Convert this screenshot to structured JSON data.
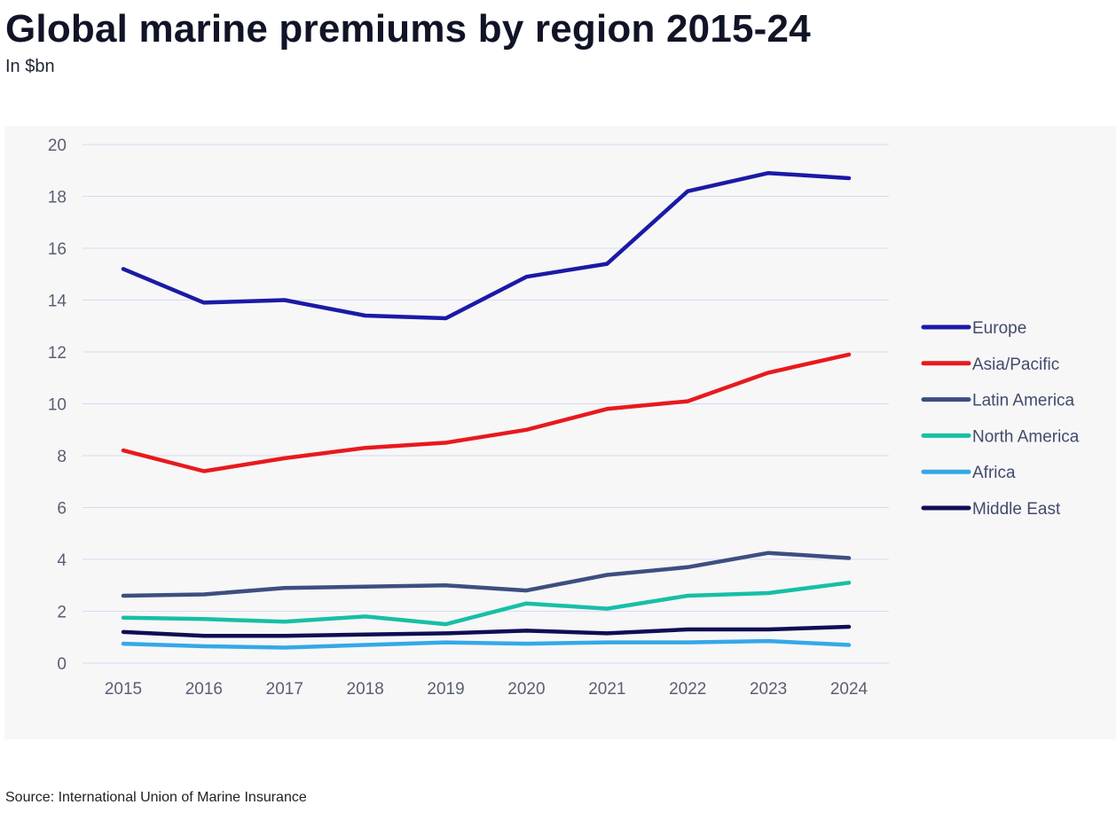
{
  "header": {
    "title": "Global marine premiums by region 2015-24",
    "subtitle": "In $bn"
  },
  "footer": {
    "source": "Source: International Union of Marine Insurance"
  },
  "chart_data": {
    "type": "line",
    "title": "Global marine premiums by region 2015-24",
    "subtitle": "In $bn",
    "xlabel": "",
    "ylabel": "",
    "ylim": [
      0,
      20
    ],
    "yticks": [
      0,
      2,
      4,
      6,
      8,
      10,
      12,
      14,
      16,
      18,
      20
    ],
    "grid": true,
    "legend_position": "right",
    "categories": [
      "2015",
      "2016",
      "2017",
      "2018",
      "2019",
      "2020",
      "2021",
      "2022",
      "2023",
      "2024"
    ],
    "series": [
      {
        "name": "Europe",
        "color": "#1a1aa6",
        "values": [
          15.2,
          13.9,
          14.0,
          13.4,
          13.3,
          14.9,
          15.4,
          18.2,
          18.9,
          18.7
        ]
      },
      {
        "name": "Asia/Pacific",
        "color": "#e8191d",
        "values": [
          8.2,
          7.4,
          7.9,
          8.3,
          8.5,
          9.0,
          9.8,
          10.1,
          11.2,
          11.9
        ]
      },
      {
        "name": "Latin America",
        "color": "#3d4f80",
        "values": [
          2.6,
          2.65,
          2.9,
          2.95,
          3.0,
          2.8,
          3.4,
          3.7,
          4.25,
          4.05
        ]
      },
      {
        "name": "North America",
        "color": "#17bfa5",
        "values": [
          1.75,
          1.7,
          1.6,
          1.8,
          1.5,
          2.3,
          2.1,
          2.6,
          2.7,
          3.1
        ]
      },
      {
        "name": "Africa",
        "color": "#34a8e8",
        "values": [
          0.75,
          0.65,
          0.6,
          0.7,
          0.8,
          0.75,
          0.8,
          0.8,
          0.85,
          0.7
        ]
      },
      {
        "name": "Middle East",
        "color": "#0e0e55",
        "values": [
          1.2,
          1.05,
          1.05,
          1.1,
          1.15,
          1.25,
          1.15,
          1.3,
          1.3,
          1.4
        ]
      }
    ]
  }
}
